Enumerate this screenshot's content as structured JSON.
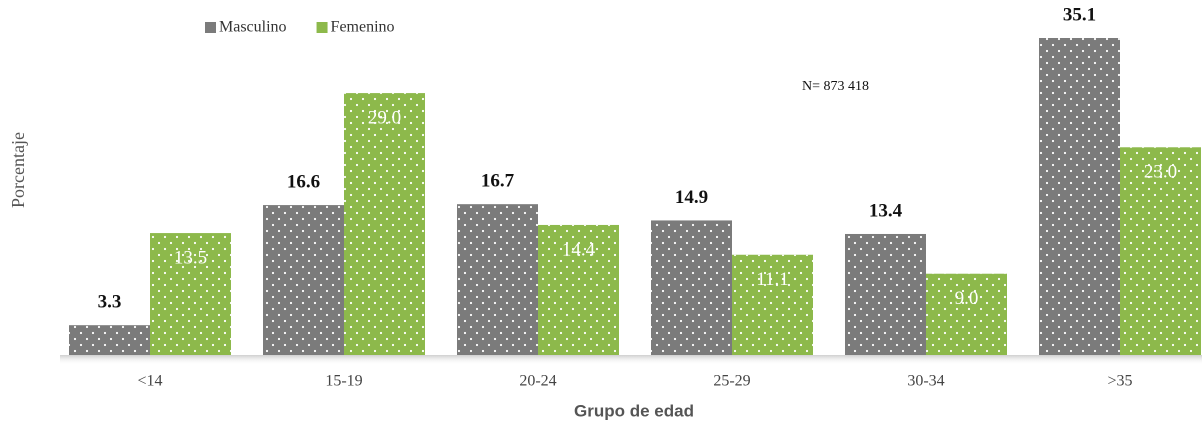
{
  "chart_data": {
    "type": "bar",
    "x_label": "Grupo de edad",
    "y_label": "Porcentaje",
    "annotation": "N= 873 418",
    "categories": [
      "<14",
      "15-19",
      "20-24",
      "25-29",
      "30-34",
      ">35"
    ],
    "series": [
      {
        "name": "Masculino",
        "color": "#7b7b7b",
        "values": [
          3.3,
          16.6,
          16.7,
          14.9,
          13.4,
          35.1
        ],
        "value_labels": [
          "3.3",
          "16.6",
          "16.7",
          "14.9",
          "13.4",
          "35.1"
        ]
      },
      {
        "name": "Femenino",
        "color": "#8db94b",
        "values": [
          13.5,
          29.0,
          14.4,
          11.1,
          9.0,
          23.0
        ],
        "value_labels": [
          "13.5",
          "29.0",
          "14.4",
          "11.1",
          "9.0",
          "23.0"
        ]
      }
    ],
    "legend": "top-left"
  }
}
